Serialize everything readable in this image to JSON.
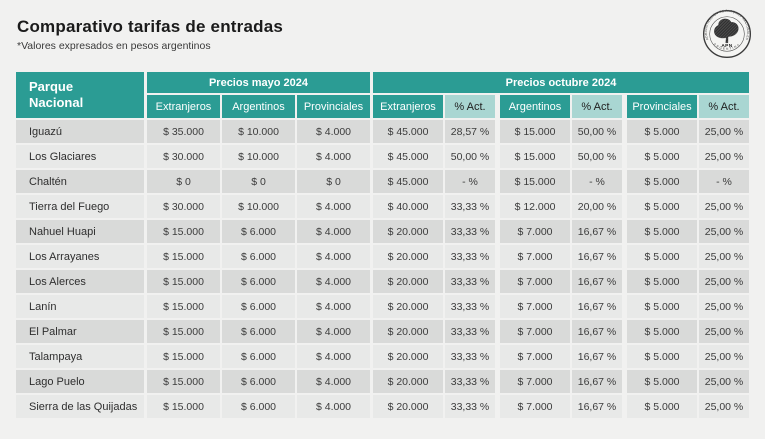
{
  "page": {
    "title": "Comparativo tarifas de entradas",
    "subtitle": "*Valores expresados en pesos argentinos"
  },
  "logo": {
    "acronym": "APN",
    "ring_top": "ADMINISTRACIÓN DE PARQUES NACIONALES",
    "ring_bottom": "ARGENTINA"
  },
  "colors": {
    "teal": "#2b9c94",
    "teal_light": "#a9d6d2",
    "row_dark": "#d9dad9",
    "row_light": "#e8e9e8",
    "background": "#f1f1f0"
  },
  "chart_data": {
    "type": "table",
    "title": "Comparativo tarifas de entradas",
    "row_header": "Parque Nacional",
    "column_groups": [
      {
        "label": "Precios mayo 2024",
        "columns": [
          "Extranjeros",
          "Argentinos",
          "Provinciales"
        ]
      },
      {
        "label": "Precios octubre 2024",
        "columns": [
          "Extranjeros",
          "% Act.",
          "Argentinos",
          "% Act.",
          "Provinciales",
          "% Act."
        ]
      }
    ],
    "rows": [
      {
        "park": "Iguazú",
        "mayo": [
          "$ 35.000",
          "$ 10.000",
          "$ 4.000"
        ],
        "octubre": [
          "$ 45.000",
          "28,57 %",
          "$ 15.000",
          "50,00 %",
          "$ 5.000",
          "25,00 %"
        ]
      },
      {
        "park": "Los Glaciares",
        "mayo": [
          "$ 30.000",
          "$ 10.000",
          "$ 4.000"
        ],
        "octubre": [
          "$ 45.000",
          "50,00 %",
          "$ 15.000",
          "50,00 %",
          "$ 5.000",
          "25,00 %"
        ]
      },
      {
        "park": "Chaltén",
        "mayo": [
          "$ 0",
          "$ 0",
          "$ 0"
        ],
        "octubre": [
          "$ 45.000",
          "- %",
          "$ 15.000",
          "- %",
          "$ 5.000",
          "- %"
        ]
      },
      {
        "park": "Tierra del Fuego",
        "mayo": [
          "$ 30.000",
          "$ 10.000",
          "$ 4.000"
        ],
        "octubre": [
          "$ 40.000",
          "33,33 %",
          "$ 12.000",
          "20,00 %",
          "$ 5.000",
          "25,00 %"
        ]
      },
      {
        "park": "Nahuel Huapi",
        "mayo": [
          "$ 15.000",
          "$ 6.000",
          "$ 4.000"
        ],
        "octubre": [
          "$ 20.000",
          "33,33 %",
          "$ 7.000",
          "16,67 %",
          "$ 5.000",
          "25,00 %"
        ]
      },
      {
        "park": "Los Arrayanes",
        "mayo": [
          "$ 15.000",
          "$ 6.000",
          "$ 4.000"
        ],
        "octubre": [
          "$ 20.000",
          "33,33 %",
          "$ 7.000",
          "16,67 %",
          "$ 5.000",
          "25,00 %"
        ]
      },
      {
        "park": "Los Alerces",
        "mayo": [
          "$ 15.000",
          "$ 6.000",
          "$ 4.000"
        ],
        "octubre": [
          "$ 20.000",
          "33,33 %",
          "$ 7.000",
          "16,67 %",
          "$ 5.000",
          "25,00 %"
        ]
      },
      {
        "park": "Lanín",
        "mayo": [
          "$ 15.000",
          "$ 6.000",
          "$ 4.000"
        ],
        "octubre": [
          "$ 20.000",
          "33,33 %",
          "$ 7.000",
          "16,67 %",
          "$ 5.000",
          "25,00 %"
        ]
      },
      {
        "park": "El Palmar",
        "mayo": [
          "$ 15.000",
          "$ 6.000",
          "$ 4.000"
        ],
        "octubre": [
          "$ 20.000",
          "33,33 %",
          "$ 7.000",
          "16,67 %",
          "$ 5.000",
          "25,00 %"
        ]
      },
      {
        "park": "Talampaya",
        "mayo": [
          "$ 15.000",
          "$ 6.000",
          "$ 4.000"
        ],
        "octubre": [
          "$ 20.000",
          "33,33 %",
          "$ 7.000",
          "16,67 %",
          "$ 5.000",
          "25,00 %"
        ]
      },
      {
        "park": "Lago Puelo",
        "mayo": [
          "$ 15.000",
          "$ 6.000",
          "$ 4.000"
        ],
        "octubre": [
          "$ 20.000",
          "33,33 %",
          "$ 7.000",
          "16,67 %",
          "$ 5.000",
          "25,00 %"
        ]
      },
      {
        "park": "Sierra de las Quijadas",
        "mayo": [
          "$ 15.000",
          "$ 6.000",
          "$ 4.000"
        ],
        "octubre": [
          "$ 20.000",
          "33,33 %",
          "$ 7.000",
          "16,67 %",
          "$ 5.000",
          "25,00 %"
        ]
      }
    ]
  }
}
